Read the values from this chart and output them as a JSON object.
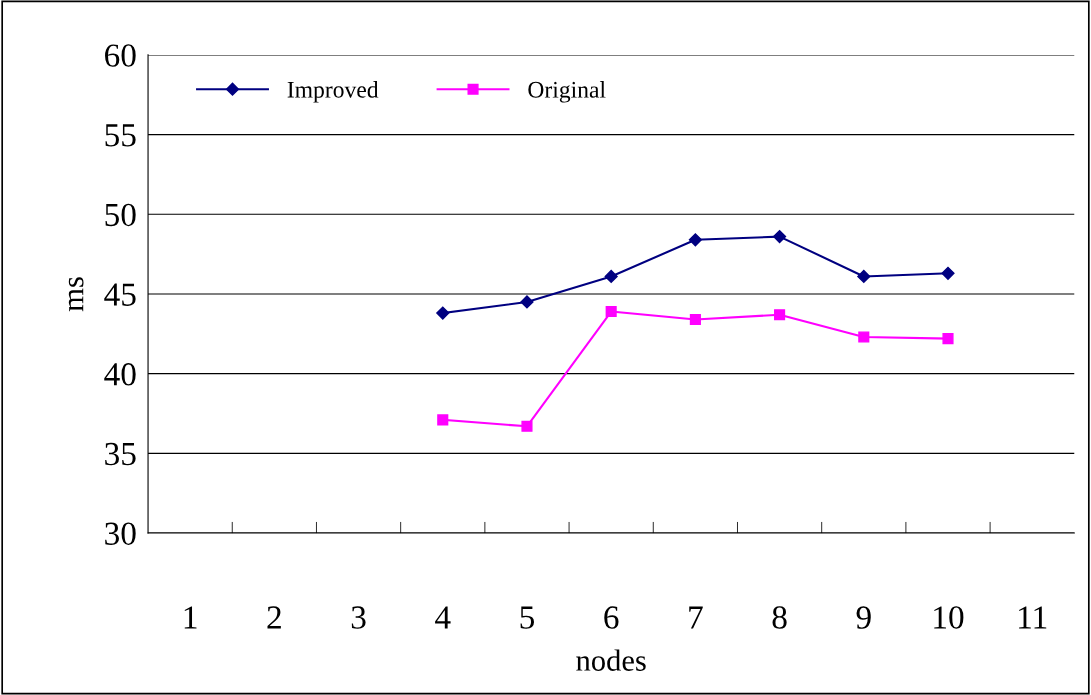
{
  "chart_data": {
    "type": "line",
    "xlabel": "nodes",
    "ylabel": "ms",
    "categories": [
      "1",
      "2",
      "3",
      "4",
      "5",
      "6",
      "7",
      "8",
      "9",
      "10",
      "11"
    ],
    "series": [
      {
        "name": "Improved",
        "color": "#000080",
        "marker": "diamond",
        "values": [
          null,
          null,
          null,
          43.8,
          44.5,
          46.1,
          48.4,
          48.6,
          46.1,
          46.3,
          null
        ]
      },
      {
        "name": "Original",
        "color": "#ff00ff",
        "marker": "square",
        "values": [
          null,
          null,
          null,
          37.1,
          36.7,
          43.9,
          43.4,
          43.7,
          42.3,
          42.2,
          null
        ]
      }
    ],
    "ylim": [
      30,
      60
    ],
    "yticks": [
      30,
      35,
      40,
      45,
      50,
      55,
      60
    ],
    "grid": "y",
    "legend": "top left",
    "line_style": "solid"
  }
}
